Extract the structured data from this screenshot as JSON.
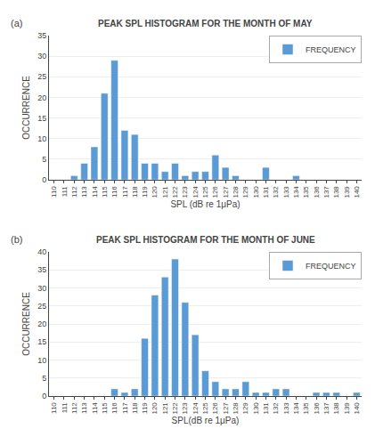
{
  "chart_data": [
    {
      "type": "bar",
      "title": "PEAK SPL HISTOGRAM FOR THE MONTH OF MAY",
      "x_label": "SPL (dB re 1μPa)",
      "y_label": "OCCURRENCE",
      "annotations": [
        "(a)"
      ],
      "x": [
        110,
        111,
        112,
        113,
        114,
        115,
        116,
        117,
        118,
        119,
        120,
        121,
        122,
        123,
        124,
        125,
        126,
        127,
        128,
        129,
        130,
        131,
        132,
        133,
        134,
        135,
        136,
        137,
        138,
        139,
        140
      ],
      "series": [
        {
          "name": "FREQUENCY",
          "color": "#5B9BD5",
          "values": [
            0,
            0,
            1,
            4,
            8,
            21,
            29,
            12,
            11,
            4,
            4,
            2,
            4,
            1,
            2,
            2,
            6,
            3,
            1,
            0,
            0,
            3,
            0,
            0,
            1,
            0,
            0,
            0,
            0,
            0,
            0
          ]
        }
      ],
      "xlim": [
        109.5,
        140.5
      ],
      "xticks": [
        110,
        111,
        112,
        113,
        114,
        115,
        116,
        117,
        118,
        119,
        120,
        121,
        122,
        123,
        124,
        125,
        126,
        127,
        128,
        129,
        130,
        131,
        132,
        133,
        134,
        135,
        136,
        137,
        138,
        139,
        140
      ],
      "ylim": [
        0,
        35
      ],
      "yticks": [
        0,
        5,
        10,
        15,
        20,
        25,
        30,
        35
      ],
      "grid": true,
      "legend": "upper right"
    },
    {
      "type": "bar",
      "title": "PEAK SPL HISTOGRAM FOR THE MONTH OF JUNE",
      "x_label": "SPL(dB re 1μPa)",
      "y_label": "OCCURRENCE",
      "annotations": [
        "(b)"
      ],
      "x": [
        110,
        111,
        112,
        113,
        114,
        115,
        116,
        117,
        118,
        119,
        120,
        121,
        122,
        123,
        124,
        125,
        126,
        127,
        128,
        129,
        130,
        131,
        132,
        133,
        134,
        135,
        136,
        137,
        138,
        139,
        140
      ],
      "series": [
        {
          "name": "FREQUENCY",
          "color": "#5B9BD5",
          "values": [
            0,
            0,
            0,
            0,
            0,
            0,
            2,
            1,
            2,
            16,
            28,
            33,
            38,
            26,
            17,
            7,
            4,
            2,
            2,
            4,
            1,
            1,
            2,
            2,
            0,
            0,
            1,
            1,
            1,
            0,
            1
          ]
        }
      ],
      "xlim": [
        109.5,
        140.5
      ],
      "xticks": [
        110,
        111,
        112,
        113,
        114,
        115,
        116,
        117,
        118,
        119,
        120,
        121,
        122,
        123,
        124,
        125,
        126,
        127,
        128,
        129,
        130,
        131,
        132,
        133,
        134,
        135,
        136,
        137,
        138,
        139,
        140
      ],
      "ylim": [
        0,
        40
      ],
      "yticks": [
        0,
        5,
        10,
        15,
        20,
        25,
        30,
        35,
        40
      ],
      "grid": true,
      "legend": "upper right"
    }
  ]
}
